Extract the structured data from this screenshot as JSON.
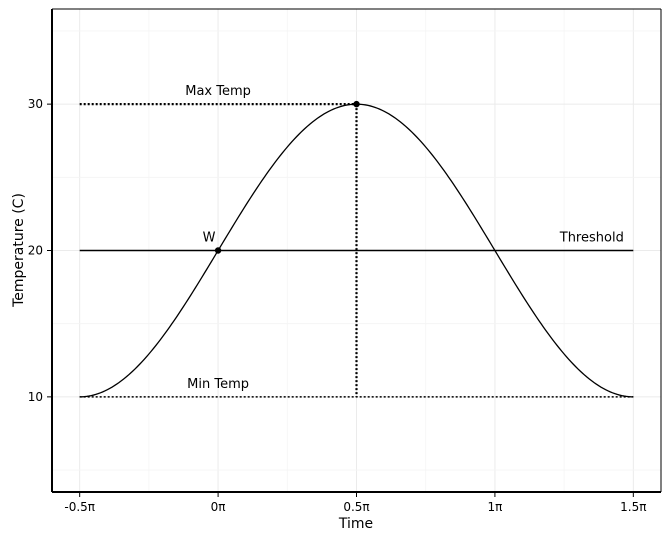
{
  "chart_data": {
    "type": "line",
    "xlabel": "Time",
    "ylabel": "Temperature (C)",
    "xlim_pi": [
      -0.6,
      1.6
    ],
    "ylim": [
      3.5,
      36.5
    ],
    "x_ticks": [
      {
        "value_pi": -0.5,
        "label": "-0.5π"
      },
      {
        "value_pi": 0,
        "label": "0π"
      },
      {
        "value_pi": 0.5,
        "label": "0.5π"
      },
      {
        "value_pi": 1,
        "label": "1π"
      },
      {
        "value_pi": 1.5,
        "label": "1.5π"
      }
    ],
    "y_ticks": [
      {
        "value": 10,
        "label": "10"
      },
      {
        "value": 20,
        "label": "20"
      },
      {
        "value": 30,
        "label": "30"
      }
    ],
    "grid": true,
    "series": [
      {
        "function": "20 + 10*sin(x)",
        "x_range_pi": [
          -0.5,
          1.5
        ],
        "color": "#000000"
      }
    ],
    "threshold": {
      "value": 20,
      "label": "Threshold"
    },
    "max_line": {
      "value": 30,
      "label": "Max Temp"
    },
    "min_line": {
      "value": 10,
      "label": "Min Temp"
    },
    "points": [
      {
        "x_pi": 0,
        "y": 20,
        "label": "W"
      },
      {
        "x_pi": 0.5,
        "y": 30,
        "label": ""
      }
    ]
  }
}
